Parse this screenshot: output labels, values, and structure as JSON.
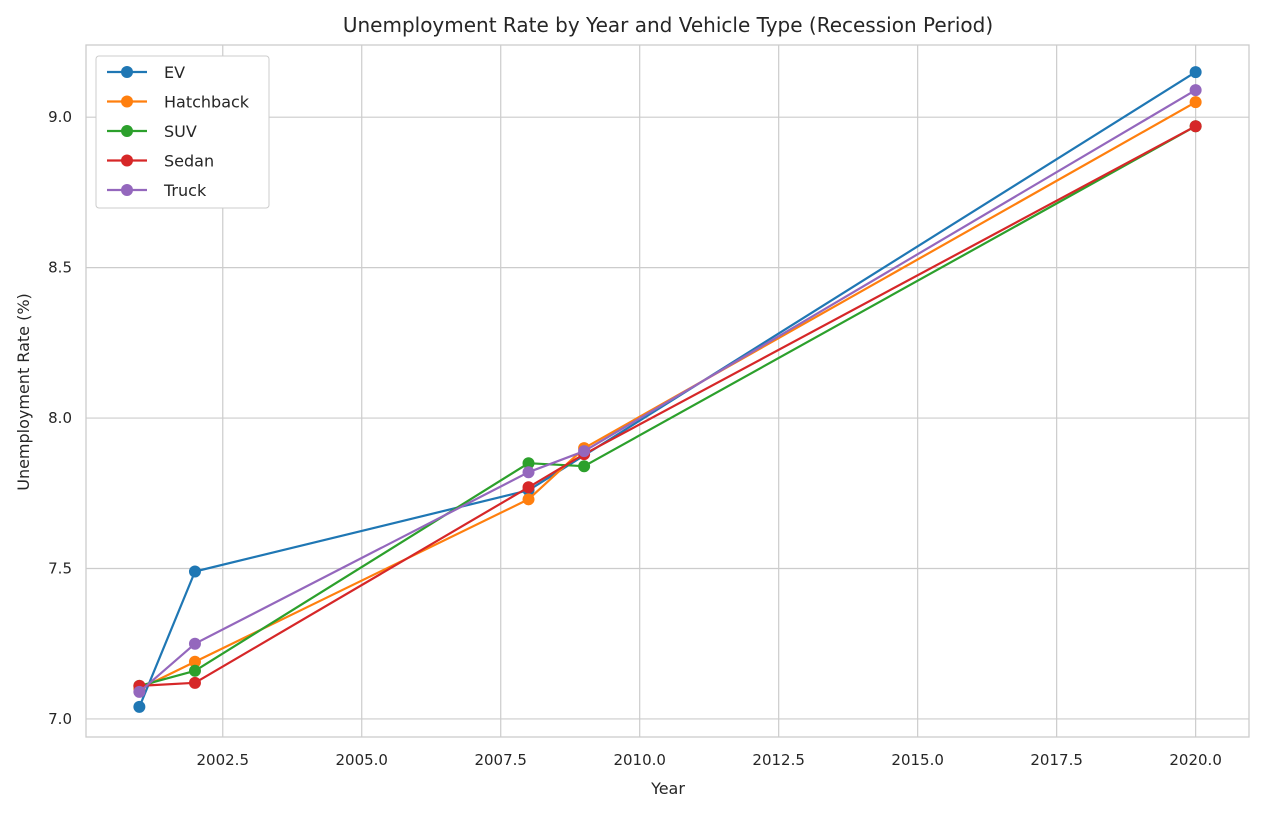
{
  "chart_data": {
    "type": "line",
    "title": "Unemployment Rate by Year and Vehicle Type (Recession Period)",
    "xlabel": "Year",
    "ylabel": "Unemployment Rate (%)",
    "xlim": [
      2000.04,
      2020.96
    ],
    "ylim": [
      6.94,
      9.24
    ],
    "xticks": [
      2002.5,
      2005.0,
      2007.5,
      2010.0,
      2012.5,
      2015.0,
      2017.5,
      2020.0
    ],
    "xtick_labels": [
      "2002.5",
      "2005.0",
      "2007.5",
      "2010.0",
      "2012.5",
      "2015.0",
      "2017.5",
      "2020.0"
    ],
    "yticks": [
      7.0,
      7.5,
      8.0,
      8.5,
      9.0
    ],
    "ytick_labels": [
      "7.0",
      "7.5",
      "8.0",
      "8.5",
      "9.0"
    ],
    "grid": true,
    "legend_position": "top-left",
    "x": [
      2001,
      2002,
      2008,
      2009,
      2020
    ],
    "series": [
      {
        "name": "EV",
        "color": "#1f77b4",
        "points": [
          [
            2001,
            7.04
          ],
          [
            2002,
            7.49
          ],
          [
            2008,
            7.76
          ],
          [
            2020,
            9.15
          ]
        ]
      },
      {
        "name": "Hatchback",
        "color": "#ff7f0e",
        "points": [
          [
            2001,
            7.1
          ],
          [
            2002,
            7.19
          ],
          [
            2008,
            7.73
          ],
          [
            2009,
            7.9
          ],
          [
            2020,
            9.05
          ]
        ]
      },
      {
        "name": "SUV",
        "color": "#2ca02c",
        "points": [
          [
            2001,
            7.11
          ],
          [
            2002,
            7.16
          ],
          [
            2008,
            7.85
          ],
          [
            2009,
            7.84
          ],
          [
            2020,
            8.97
          ]
        ]
      },
      {
        "name": "Sedan",
        "color": "#d62728",
        "points": [
          [
            2001,
            7.11
          ],
          [
            2002,
            7.12
          ],
          [
            2008,
            7.77
          ],
          [
            2009,
            7.88
          ],
          [
            2020,
            8.97
          ]
        ]
      },
      {
        "name": "Truck",
        "color": "#9467bd",
        "points": [
          [
            2001,
            7.09
          ],
          [
            2002,
            7.25
          ],
          [
            2008,
            7.82
          ],
          [
            2009,
            7.89
          ],
          [
            2020,
            9.09
          ]
        ]
      }
    ]
  }
}
